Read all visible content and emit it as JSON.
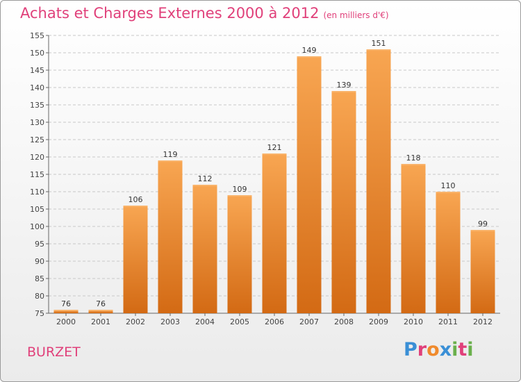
{
  "chart_data": {
    "type": "bar",
    "title": "Achats et Charges Externes 2000 à 2012",
    "subtitle": "(en milliers d'€)",
    "categories": [
      "2000",
      "2001",
      "2002",
      "2003",
      "2004",
      "2005",
      "2006",
      "2007",
      "2008",
      "2009",
      "2010",
      "2011",
      "2012"
    ],
    "values": [
      76,
      76,
      106,
      119,
      112,
      109,
      121,
      149,
      139,
      151,
      118,
      110,
      99
    ],
    "ylim": [
      75,
      155
    ],
    "yticks": [
      75,
      80,
      85,
      90,
      95,
      100,
      105,
      110,
      115,
      120,
      125,
      130,
      135,
      140,
      145,
      150,
      155
    ],
    "grid": true,
    "bar_color": "#f08a2c"
  },
  "commune": "BURZET",
  "logo": {
    "letters": [
      "P",
      "r",
      "o",
      "x",
      "i",
      "t",
      "i"
    ],
    "colors": [
      "#3a8fd6",
      "#e0407a",
      "#f08a2c",
      "#3a8fd6",
      "#6ab04c",
      "#e0407a",
      "#6ab04c"
    ]
  },
  "colors": {
    "title": "#e0407a",
    "commune": "#e0407a"
  }
}
